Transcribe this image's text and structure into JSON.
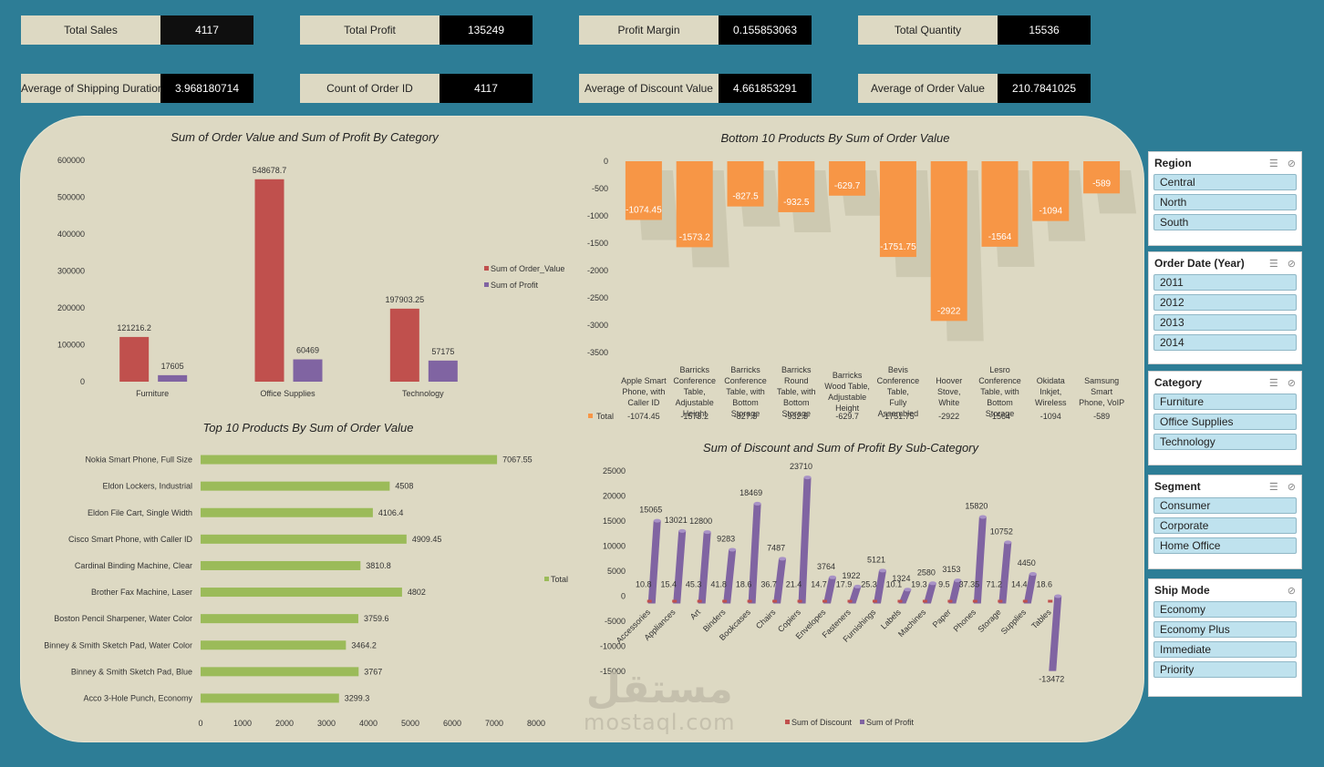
{
  "kpis": [
    {
      "label": "Total Sales",
      "value": "4117"
    },
    {
      "label": "Total Profit",
      "value": "135249"
    },
    {
      "label": "Profit Margin",
      "value": "0.155853063"
    },
    {
      "label": "Total Quantity",
      "value": "15536"
    },
    {
      "label": "Average of Shipping Duration",
      "value": "3.968180714"
    },
    {
      "label": "Count of Order ID",
      "value": "4117"
    },
    {
      "label": "Average of Discount Value",
      "value": "4.661853291"
    },
    {
      "label": "Average of Order Value",
      "value": "210.7841025"
    }
  ],
  "chart_data": [
    {
      "type": "bar",
      "title": "Sum of Order Value and Sum of Profit By Category",
      "categories": [
        "Furniture",
        "Office Supplies",
        "Technology"
      ],
      "series": [
        {
          "name": "Sum of Order_Value",
          "values": [
            121216.2,
            548678.7,
            197903.25
          ],
          "color": "#c0504d"
        },
        {
          "name": "Sum of Profit",
          "values": [
            17605,
            60469,
            57175
          ],
          "color": "#8064a2"
        }
      ],
      "value_labels": [
        [
          "121216.2",
          "548678.7",
          "197903.25"
        ],
        [
          "17605",
          "60469",
          "57175"
        ]
      ],
      "ylim": [
        0,
        600000
      ],
      "yticks": [
        "0",
        "100000",
        "200000",
        "300000",
        "400000",
        "500000",
        "600000"
      ],
      "legend": "right"
    },
    {
      "type": "bar",
      "title": "Bottom 10 Products By Sum of Order Value",
      "categories": [
        "Apple Smart Phone, with Caller ID",
        "Barricks Conference Table, Adjustable Height",
        "Barricks Conference Table, with Bottom Storage",
        "Barricks Round Table, with Bottom Storage",
        "Barricks Wood Table, Adjustable Height",
        "Bevis Conference Table, Fully Assembled",
        "Hoover Stove, White",
        "Lesro Conference Table, with Bottom Storage",
        "Okidata Inkjet, Wireless",
        "Samsung Smart Phone, VoIP"
      ],
      "series": [
        {
          "name": "Total",
          "values": [
            -1074.45,
            -1573.2,
            -827.5,
            -932.5,
            -629.7,
            -1751.75,
            -2922,
            -1564,
            -1094,
            -589
          ],
          "color": "#f79646"
        }
      ],
      "value_labels": [
        "-1074.45",
        "-1573.2",
        "-827.5",
        "-932.5",
        "-629.7",
        "-1751.75",
        "-2922",
        "-1564",
        "-1094",
        "-589"
      ],
      "ylim": [
        -3500,
        0
      ],
      "yticks": [
        "0",
        "-500",
        "-1000",
        "-1500",
        "-2000",
        "-2500",
        "-3000",
        "-3500"
      ],
      "legend": "bottom (data table)"
    },
    {
      "type": "bar",
      "orientation": "horizontal",
      "title": "Top 10 Products By Sum of Order Value",
      "categories": [
        "Nokia Smart Phone, Full Size",
        "Eldon Lockers, Industrial",
        "Eldon File Cart, Single Width",
        "Cisco Smart Phone, with Caller ID",
        "Cardinal Binding Machine, Clear",
        "Brother Fax Machine, Laser",
        "Boston Pencil Sharpener, Water Color",
        "Binney & Smith Sketch Pad, Water Color",
        "Binney & Smith Sketch Pad, Blue",
        "Acco 3-Hole Punch, Economy"
      ],
      "series": [
        {
          "name": "Total",
          "values": [
            7067.55,
            4508,
            4106.4,
            4909.45,
            3810.8,
            4802,
            3759.6,
            3464.2,
            3767,
            3299.3
          ],
          "color": "#9bbb59"
        }
      ],
      "value_labels": [
        "7067.55",
        "4508",
        "4106.4",
        "4909.45",
        "3810.8",
        "4802",
        "3759.6",
        "3464.2",
        "3767",
        "3299.3"
      ],
      "xlim": [
        0,
        8000
      ],
      "xticks": [
        "0",
        "1000",
        "2000",
        "3000",
        "4000",
        "5000",
        "6000",
        "7000",
        "8000"
      ],
      "legend": "right"
    },
    {
      "type": "bar",
      "title": "Sum of Discount and Sum of Profit By Sub-Category",
      "categories": [
        "Accessories",
        "Appliances",
        "Art",
        "Binders",
        "Bookcases",
        "Chairs",
        "Copiers",
        "Envelopes",
        "Fasteners",
        "Furnishings",
        "Labels",
        "Machines",
        "Paper",
        "Phones",
        "Storage",
        "Supplies",
        "Tables"
      ],
      "series": [
        {
          "name": "Sum of Discount",
          "values": [
            10.8,
            15.4,
            45.3,
            41.8,
            18.6,
            36.7,
            21.4,
            14.7,
            17.9,
            25.3,
            10.1,
            19.3,
            9.5,
            37.35,
            71.2,
            14.4,
            18.6
          ],
          "color": "#c0504d"
        },
        {
          "name": "Sum of Profit",
          "values": [
            15065,
            13021,
            12800,
            9283,
            18469,
            7487,
            23710,
            3764,
            1922,
            5121,
            1324,
            2580,
            3153,
            15820,
            10752,
            4450,
            -13472
          ],
          "color": "#8064a2"
        }
      ],
      "discount_labels": [
        "10.8",
        "15.4",
        "45.3",
        "41.8",
        "18.6",
        "36.7",
        "21.4",
        "14.7",
        "17.9",
        "25.3",
        "10.1",
        "19.3",
        "9.5",
        "37.35",
        "71.2",
        "14.4",
        "18.6"
      ],
      "profit_labels": [
        "15065",
        "13021",
        "12800",
        "9283",
        "18469",
        "7487",
        "23710",
        "3764",
        "1922",
        "5121",
        "1324",
        "2580",
        "3153",
        "15820",
        "10752",
        "4450",
        "-13472"
      ],
      "ylim": [
        -15000,
        25000
      ],
      "yticks": [
        "25000",
        "20000",
        "15000",
        "10000",
        "5000",
        "0",
        "-5000",
        "-10000",
        "-15000"
      ],
      "legend": "bottom"
    }
  ],
  "slicers": [
    {
      "title": "Region",
      "items": [
        "Central",
        "North",
        "South"
      ]
    },
    {
      "title": "Order Date (Year)",
      "items": [
        "2011",
        "2012",
        "2013",
        "2014"
      ]
    },
    {
      "title": "Category",
      "items": [
        "Furniture",
        "Office Supplies",
        "Technology"
      ]
    },
    {
      "title": "Segment",
      "items": [
        "Consumer",
        "Corporate",
        "Home Office"
      ]
    },
    {
      "title": "Ship Mode",
      "items": [
        "Economy",
        "Economy Plus",
        "Immediate",
        "Priority"
      ]
    }
  ],
  "slicer_icons": [
    "multi-select-icon",
    "clear-filter-icon"
  ],
  "watermark": {
    "arabic": "مستقل",
    "latin": "mostaql.com"
  }
}
